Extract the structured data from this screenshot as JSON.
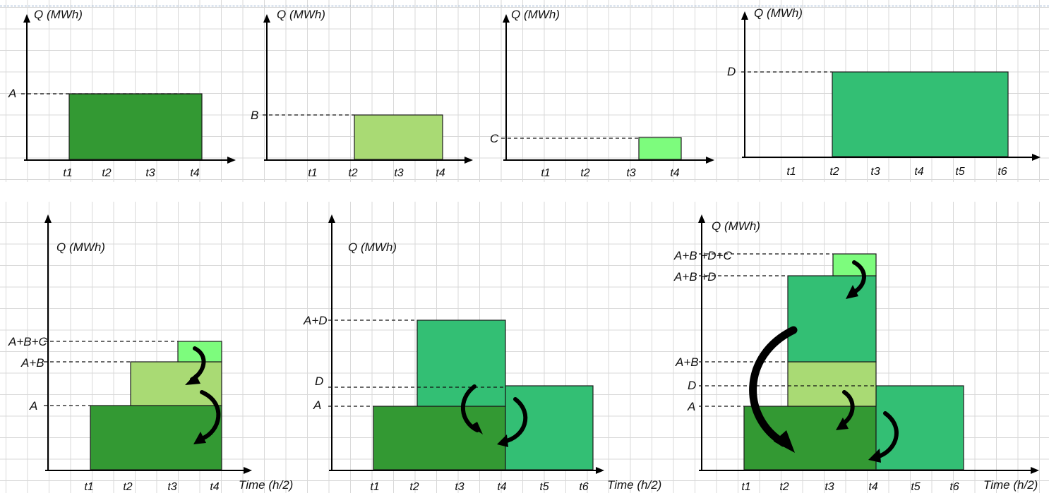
{
  "colors": {
    "A": "#339933",
    "B": "#a9da74",
    "C": "#7dfc7d",
    "D": "#33bf74"
  },
  "charts": [
    {
      "id": "chart-a",
      "ylabel": "Q (MWh)",
      "ticks": [
        "t1",
        "t2",
        "t3",
        "t4"
      ],
      "levels": [
        {
          "label": "A"
        }
      ],
      "blocks": [
        {
          "key": "A",
          "from": "t1",
          "to": "t4",
          "height_label": "A"
        }
      ]
    },
    {
      "id": "chart-b",
      "ylabel": "Q (MWh)",
      "ticks": [
        "t1",
        "t2",
        "t3",
        "t4"
      ],
      "levels": [
        {
          "label": "B"
        }
      ],
      "blocks": [
        {
          "key": "B",
          "from": "t2",
          "to": "t4",
          "height_label": "B"
        }
      ]
    },
    {
      "id": "chart-c",
      "ylabel": "Q (MWh)",
      "ticks": [
        "t1",
        "t2",
        "t3",
        "t4"
      ],
      "levels": [
        {
          "label": "C"
        }
      ],
      "blocks": [
        {
          "key": "C",
          "from": "t3",
          "to": "t4",
          "height_label": "C"
        }
      ]
    },
    {
      "id": "chart-d",
      "ylabel": "Q (MWh)",
      "ticks": [
        "t1",
        "t2",
        "t3",
        "t4",
        "t5",
        "t6"
      ],
      "levels": [
        {
          "label": "D"
        }
      ],
      "blocks": [
        {
          "key": "D",
          "from": "t2",
          "to": "t6",
          "height_label": "D"
        }
      ]
    },
    {
      "id": "chart-abc",
      "ylabel": "Q (MWh)",
      "xlabel": "Time (h/2)",
      "ticks": [
        "t1",
        "t2",
        "t3",
        "t4"
      ],
      "levels": [
        {
          "label": "A+B+C"
        },
        {
          "label": "A+B"
        },
        {
          "label": "A"
        }
      ]
    },
    {
      "id": "chart-ad",
      "ylabel": "Q (MWh)",
      "xlabel": "Time (h/2)",
      "ticks": [
        "t1",
        "t2",
        "t3",
        "t4",
        "t5",
        "t6"
      ],
      "levels": [
        {
          "label": "A+D"
        },
        {
          "label": "D"
        },
        {
          "label": "A"
        }
      ]
    },
    {
      "id": "chart-abcd",
      "ylabel": "Q (MWh)",
      "xlabel": "Time (h/2)",
      "ticks": [
        "t1",
        "t2",
        "t3",
        "t4",
        "t5",
        "t6"
      ],
      "levels": [
        {
          "label": "A+B +D+C"
        },
        {
          "label": "A+B +D"
        },
        {
          "label": "A+B"
        },
        {
          "label": "D"
        },
        {
          "label": "A"
        }
      ]
    }
  ]
}
